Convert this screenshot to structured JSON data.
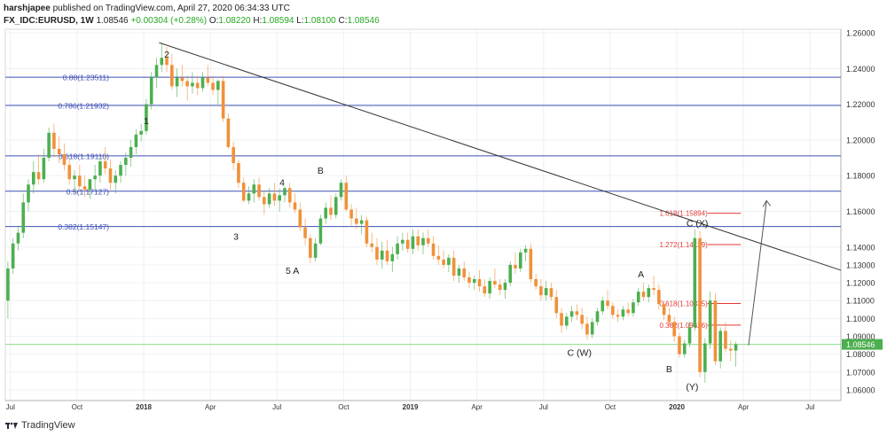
{
  "header": {
    "author": "harshjapee",
    "published": "published on TradingView.com, April 27, 2020 06:34:33 UTC",
    "symbol": "FX_IDC:EURUSD, 1W",
    "last": "1.08546",
    "change": "+0.00304 (+0.28%)",
    "o_label": "O:",
    "o_value": "1.08220",
    "h_label": "H:",
    "h_value": "1.08594",
    "l_label": "L:",
    "l_value": "1.08100",
    "c_label": "C:",
    "c_value": "1.08546"
  },
  "footer": {
    "brand": "TradingView"
  },
  "chart_data": {
    "type": "candlestick",
    "ylim": [
      1.054,
      1.262
    ],
    "yticks": [
      "1.26000",
      "1.24000",
      "1.22000",
      "1.20000",
      "1.18000",
      "1.16000",
      "1.14000",
      "1.13000",
      "1.12000",
      "1.11000",
      "1.10000",
      "1.09000",
      "1.08000",
      "1.07000",
      "1.06000"
    ],
    "ytick_values": [
      1.26,
      1.24,
      1.22,
      1.2,
      1.18,
      1.16,
      1.14,
      1.13,
      1.12,
      1.11,
      1.1,
      1.09,
      1.08,
      1.07,
      1.06
    ],
    "xticks": [
      "Jul",
      "Oct",
      "2018",
      "Apr",
      "Jul",
      "Oct",
      "2019",
      "Apr",
      "Jul",
      "Oct",
      "2020",
      "Apr",
      "Jul"
    ],
    "xtick_weeks": [
      1,
      14,
      27,
      40,
      53,
      66,
      79,
      92,
      105,
      118,
      131,
      144,
      157
    ],
    "current_price_label": "1.08546",
    "current_price": 1.08546,
    "colors": {
      "up": "#4caf50",
      "down": "#f0913a",
      "fib_blue": "#3f51b5",
      "fib_red": "#e53935",
      "trend": "#333333",
      "price_line": "#8bdc8b",
      "price_label_bg": "#4caf50"
    },
    "candles": [
      [
        1.11,
        1.132,
        1.1,
        1.128
      ],
      [
        1.128,
        1.145,
        1.125,
        1.142
      ],
      [
        1.142,
        1.152,
        1.138,
        1.148
      ],
      [
        1.148,
        1.17,
        1.145,
        1.165
      ],
      [
        1.165,
        1.178,
        1.16,
        1.175
      ],
      [
        1.175,
        1.188,
        1.17,
        1.182
      ],
      [
        1.182,
        1.192,
        1.175,
        1.178
      ],
      [
        1.178,
        1.195,
        1.176,
        1.19
      ],
      [
        1.19,
        1.207,
        1.188,
        1.204
      ],
      [
        1.204,
        1.209,
        1.19,
        1.195
      ],
      [
        1.195,
        1.202,
        1.187,
        1.192
      ],
      [
        1.192,
        1.198,
        1.183,
        1.186
      ],
      [
        1.186,
        1.19,
        1.175,
        1.178
      ],
      [
        1.178,
        1.183,
        1.17,
        1.18
      ],
      [
        1.18,
        1.186,
        1.172,
        1.174
      ],
      [
        1.174,
        1.18,
        1.168,
        1.172
      ],
      [
        1.172,
        1.178,
        1.167,
        1.178
      ],
      [
        1.178,
        1.186,
        1.172,
        1.18
      ],
      [
        1.18,
        1.19,
        1.176,
        1.188
      ],
      [
        1.188,
        1.196,
        1.181,
        1.184
      ],
      [
        1.184,
        1.189,
        1.172,
        1.176
      ],
      [
        1.176,
        1.183,
        1.17,
        1.18
      ],
      [
        1.18,
        1.188,
        1.176,
        1.186
      ],
      [
        1.186,
        1.193,
        1.18,
        1.19
      ],
      [
        1.19,
        1.2,
        1.185,
        1.196
      ],
      [
        1.196,
        1.206,
        1.192,
        1.203
      ],
      [
        1.203,
        1.209,
        1.199,
        1.205
      ],
      [
        1.205,
        1.223,
        1.203,
        1.22
      ],
      [
        1.22,
        1.238,
        1.217,
        1.235
      ],
      [
        1.235,
        1.246,
        1.229,
        1.242
      ],
      [
        1.242,
        1.254,
        1.238,
        1.246
      ],
      [
        1.246,
        1.252,
        1.238,
        1.242
      ],
      [
        1.242,
        1.248,
        1.228,
        1.23
      ],
      [
        1.23,
        1.24,
        1.224,
        1.235
      ],
      [
        1.235,
        1.242,
        1.23,
        1.233
      ],
      [
        1.233,
        1.236,
        1.222,
        1.23
      ],
      [
        1.23,
        1.238,
        1.226,
        1.232
      ],
      [
        1.232,
        1.236,
        1.225,
        1.229
      ],
      [
        1.229,
        1.238,
        1.227,
        1.235
      ],
      [
        1.235,
        1.242,
        1.23,
        1.232
      ],
      [
        1.232,
        1.236,
        1.225,
        1.228
      ],
      [
        1.228,
        1.234,
        1.22,
        1.233
      ],
      [
        1.233,
        1.236,
        1.21,
        1.212
      ],
      [
        1.212,
        1.215,
        1.195,
        1.196
      ],
      [
        1.196,
        1.199,
        1.183,
        1.187
      ],
      [
        1.187,
        1.189,
        1.173,
        1.176
      ],
      [
        1.176,
        1.179,
        1.165,
        1.166
      ],
      [
        1.166,
        1.174,
        1.164,
        1.17
      ],
      [
        1.17,
        1.178,
        1.165,
        1.175
      ],
      [
        1.175,
        1.179,
        1.166,
        1.168
      ],
      [
        1.168,
        1.172,
        1.158,
        1.164
      ],
      [
        1.164,
        1.173,
        1.162,
        1.17
      ],
      [
        1.17,
        1.176,
        1.163,
        1.166
      ],
      [
        1.166,
        1.173,
        1.16,
        1.169
      ],
      [
        1.169,
        1.174,
        1.165,
        1.173
      ],
      [
        1.173,
        1.176,
        1.162,
        1.165
      ],
      [
        1.165,
        1.17,
        1.159,
        1.161
      ],
      [
        1.161,
        1.165,
        1.149,
        1.151
      ],
      [
        1.151,
        1.156,
        1.141,
        1.145
      ],
      [
        1.145,
        1.147,
        1.131,
        1.134
      ],
      [
        1.134,
        1.145,
        1.132,
        1.142
      ],
      [
        1.142,
        1.158,
        1.141,
        1.156
      ],
      [
        1.156,
        1.165,
        1.153,
        1.162
      ],
      [
        1.162,
        1.169,
        1.155,
        1.158
      ],
      [
        1.158,
        1.17,
        1.156,
        1.168
      ],
      [
        1.168,
        1.178,
        1.166,
        1.176
      ],
      [
        1.176,
        1.18,
        1.16,
        1.161
      ],
      [
        1.161,
        1.164,
        1.152,
        1.156
      ],
      [
        1.156,
        1.162,
        1.15,
        1.153
      ],
      [
        1.153,
        1.158,
        1.147,
        1.155
      ],
      [
        1.155,
        1.157,
        1.14,
        1.142
      ],
      [
        1.142,
        1.148,
        1.137,
        1.14
      ],
      [
        1.14,
        1.145,
        1.13,
        1.133
      ],
      [
        1.133,
        1.143,
        1.128,
        1.138
      ],
      [
        1.138,
        1.144,
        1.13,
        1.132
      ],
      [
        1.132,
        1.14,
        1.126,
        1.136
      ],
      [
        1.136,
        1.146,
        1.133,
        1.142
      ],
      [
        1.142,
        1.148,
        1.138,
        1.144
      ],
      [
        1.144,
        1.148,
        1.137,
        1.139
      ],
      [
        1.139,
        1.15,
        1.136,
        1.146
      ],
      [
        1.146,
        1.15,
        1.138,
        1.141
      ],
      [
        1.141,
        1.148,
        1.136,
        1.145
      ],
      [
        1.145,
        1.15,
        1.14,
        1.142
      ],
      [
        1.142,
        1.146,
        1.133,
        1.135
      ],
      [
        1.135,
        1.141,
        1.13,
        1.133
      ],
      [
        1.133,
        1.138,
        1.128,
        1.13
      ],
      [
        1.13,
        1.136,
        1.126,
        1.134
      ],
      [
        1.134,
        1.138,
        1.121,
        1.124
      ],
      [
        1.124,
        1.13,
        1.12,
        1.128
      ],
      [
        1.128,
        1.132,
        1.121,
        1.123
      ],
      [
        1.123,
        1.126,
        1.117,
        1.12
      ],
      [
        1.12,
        1.124,
        1.116,
        1.122
      ],
      [
        1.122,
        1.127,
        1.115,
        1.118
      ],
      [
        1.118,
        1.122,
        1.112,
        1.114
      ],
      [
        1.114,
        1.123,
        1.111,
        1.121
      ],
      [
        1.121,
        1.128,
        1.117,
        1.119
      ],
      [
        1.119,
        1.122,
        1.113,
        1.116
      ],
      [
        1.116,
        1.122,
        1.111,
        1.12
      ],
      [
        1.12,
        1.132,
        1.118,
        1.13
      ],
      [
        1.13,
        1.137,
        1.125,
        1.128
      ],
      [
        1.128,
        1.139,
        1.126,
        1.137
      ],
      [
        1.137,
        1.141,
        1.132,
        1.139
      ],
      [
        1.139,
        1.142,
        1.12,
        1.122
      ],
      [
        1.122,
        1.125,
        1.116,
        1.118
      ],
      [
        1.118,
        1.122,
        1.11,
        1.113
      ],
      [
        1.113,
        1.121,
        1.11,
        1.117
      ],
      [
        1.117,
        1.12,
        1.11,
        1.112
      ],
      [
        1.112,
        1.116,
        1.1,
        1.103
      ],
      [
        1.103,
        1.106,
        1.092,
        1.096
      ],
      [
        1.096,
        1.103,
        1.094,
        1.101
      ],
      [
        1.101,
        1.107,
        1.098,
        1.104
      ],
      [
        1.104,
        1.108,
        1.099,
        1.102
      ],
      [
        1.102,
        1.106,
        1.094,
        1.097
      ],
      [
        1.097,
        1.101,
        1.088,
        1.091
      ],
      [
        1.091,
        1.1,
        1.089,
        1.098
      ],
      [
        1.098,
        1.106,
        1.096,
        1.104
      ],
      [
        1.104,
        1.112,
        1.102,
        1.11
      ],
      [
        1.11,
        1.116,
        1.105,
        1.107
      ],
      [
        1.107,
        1.109,
        1.1,
        1.102
      ],
      [
        1.102,
        1.105,
        1.098,
        1.101
      ],
      [
        1.101,
        1.107,
        1.099,
        1.105
      ],
      [
        1.105,
        1.109,
        1.101,
        1.103
      ],
      [
        1.103,
        1.111,
        1.101,
        1.109
      ],
      [
        1.109,
        1.117,
        1.107,
        1.115
      ],
      [
        1.115,
        1.12,
        1.11,
        1.112
      ],
      [
        1.112,
        1.119,
        1.109,
        1.117
      ],
      [
        1.117,
        1.124,
        1.113,
        1.116
      ],
      [
        1.116,
        1.119,
        1.105,
        1.108
      ],
      [
        1.108,
        1.11,
        1.099,
        1.102
      ],
      [
        1.102,
        1.106,
        1.096,
        1.098
      ],
      [
        1.098,
        1.101,
        1.087,
        1.09
      ],
      [
        1.09,
        1.092,
        1.078,
        1.08
      ],
      [
        1.08,
        1.088,
        1.078,
        1.086
      ],
      [
        1.086,
        1.098,
        1.084,
        1.095
      ],
      [
        1.095,
        1.15,
        1.093,
        1.145
      ],
      [
        1.145,
        1.149,
        1.067,
        1.07
      ],
      [
        1.07,
        1.089,
        1.064,
        1.086
      ],
      [
        1.086,
        1.115,
        1.083,
        1.11
      ],
      [
        1.11,
        1.114,
        1.074,
        1.076
      ],
      [
        1.076,
        1.095,
        1.072,
        1.093
      ],
      [
        1.093,
        1.098,
        1.081,
        1.083
      ],
      [
        1.083,
        1.088,
        1.076,
        1.082
      ],
      [
        1.082,
        1.087,
        1.073,
        1.0855
      ]
    ],
    "fib_levels": [
      {
        "label": "0.88(1.23511)",
        "value": 1.23511,
        "color": "#3f51b5"
      },
      {
        "label": "0.786(1.21932)",
        "value": 1.21932,
        "color": "#3f51b5"
      },
      {
        "label": "0.618(1.19110)",
        "value": 1.1911,
        "color": "#3f51b5"
      },
      {
        "label": "0.5(1.17127)",
        "value": 1.17127,
        "color": "#3f51b5"
      },
      {
        "label": "0.382(1.15147)",
        "value": 1.15147,
        "color": "#3f51b5"
      }
    ],
    "red_levels": [
      {
        "label": "1.618(1.15894)",
        "value": 1.15894
      },
      {
        "label": "1.272(1.14139)",
        "value": 1.14139
      },
      {
        "label": "0.618(1.10835)",
        "value": 1.10835
      },
      {
        "label": "0.382(1.09626)",
        "value": 1.09626
      }
    ],
    "trendline": [
      [
        30,
        1.2545
      ],
      [
        163,
        1.127
      ]
    ],
    "arrow": [
      [
        145,
        1.085
      ],
      [
        148.5,
        1.166
      ]
    ],
    "wave_labels": [
      {
        "text": "2",
        "week": 31.5,
        "price": 1.246
      },
      {
        "text": "1",
        "week": 27.5,
        "price": 1.209
      },
      {
        "text": "3",
        "week": 45,
        "price": 1.144
      },
      {
        "text": "4",
        "week": 54,
        "price": 1.1745
      },
      {
        "text": "B",
        "week": 61.5,
        "price": 1.181
      },
      {
        "text": "5 A",
        "week": 56,
        "price": 1.125
      },
      {
        "text": "A",
        "week": 124,
        "price": 1.123
      },
      {
        "text": "C (W)",
        "week": 112,
        "price": 1.079
      },
      {
        "text": "C (X)",
        "week": 135,
        "price": 1.1515
      },
      {
        "text": "B",
        "week": 129.5,
        "price": 1.07
      },
      {
        "text": "(Y)",
        "week": 134,
        "price": 1.06
      }
    ]
  }
}
